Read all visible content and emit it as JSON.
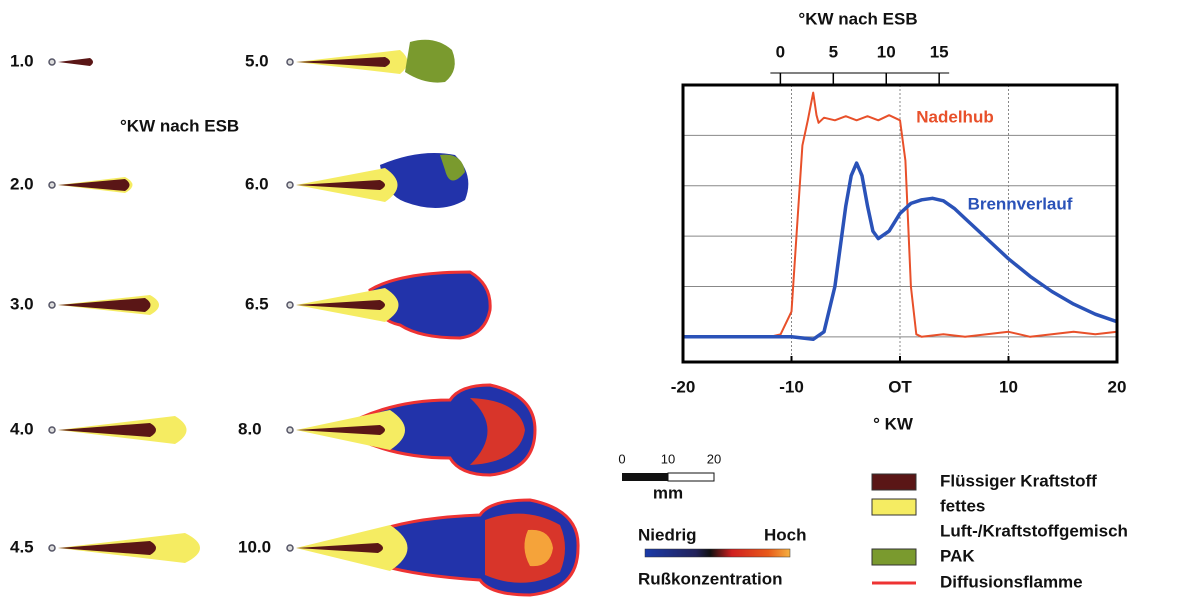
{
  "sprays": {
    "axis_title": "°KW nach ESB",
    "labels": [
      "1.0",
      "2.0",
      "3.0",
      "4.0",
      "4.5",
      "5.0",
      "6.0",
      "6.5",
      "8.0",
      "10.0"
    ]
  },
  "scale_bar": {
    "ticks": [
      0,
      10,
      20
    ],
    "unit": "mm"
  },
  "color_scale": {
    "low": "Niedrig",
    "high": "Hoch",
    "title": "Rußkonzentration"
  },
  "legend": {
    "entries": [
      "Flüssiger Kraftstoff",
      "fettes",
      "Luft-/Kraftstoffgemisch",
      "PAK",
      "Diffusionsflamme"
    ]
  },
  "chart_data": {
    "type": "line",
    "xlabel": "° KW",
    "x2label": "°KW nach ESB",
    "xlim": [
      -20,
      20
    ],
    "xticks": [
      -20,
      -10,
      {
        "value": 0,
        "label": "OT"
      },
      10,
      20
    ],
    "x2lim": [
      -9.2,
      31.8
    ],
    "x2ticks": [
      0,
      5,
      10,
      15
    ],
    "ylim": [
      -0.5,
      5
    ],
    "yticks": [
      0,
      1,
      2,
      3,
      4
    ],
    "grid": true,
    "series": [
      {
        "name": "Nadelhub",
        "color": "#e8502a",
        "x": [
          -20,
          -12,
          -11,
          -10,
          -9,
          -8.5,
          -8,
          -7.7,
          -7.5,
          -7,
          -6,
          -5,
          -4,
          -3,
          -2,
          -1,
          0,
          0.5,
          1,
          1.5,
          2,
          4,
          6,
          8,
          10,
          12,
          14,
          16,
          18,
          20
        ],
        "values": [
          0,
          0,
          0.05,
          0.5,
          3.8,
          4.3,
          4.85,
          4.4,
          4.25,
          4.35,
          4.3,
          4.38,
          4.3,
          4.38,
          4.3,
          4.4,
          4.3,
          3.5,
          1.0,
          0.05,
          0,
          0.05,
          0,
          0.05,
          0.1,
          0,
          0.05,
          0.1,
          0.05,
          0.1
        ]
      },
      {
        "name": "Brennverlauf",
        "color": "#2a52b8",
        "x": [
          -20,
          -15,
          -10,
          -8,
          -7,
          -6,
          -5,
          -4.5,
          -4,
          -3.5,
          -3,
          -2.5,
          -2,
          -1,
          0,
          1,
          2,
          3,
          4,
          5,
          6,
          8,
          10,
          12,
          14,
          16,
          18,
          20
        ],
        "values": [
          0,
          0,
          0,
          -0.05,
          0.1,
          1.0,
          2.6,
          3.2,
          3.45,
          3.2,
          2.6,
          2.1,
          1.95,
          2.1,
          2.45,
          2.65,
          2.72,
          2.75,
          2.7,
          2.55,
          2.35,
          1.95,
          1.55,
          1.2,
          0.9,
          0.65,
          0.45,
          0.3
        ]
      }
    ]
  }
}
